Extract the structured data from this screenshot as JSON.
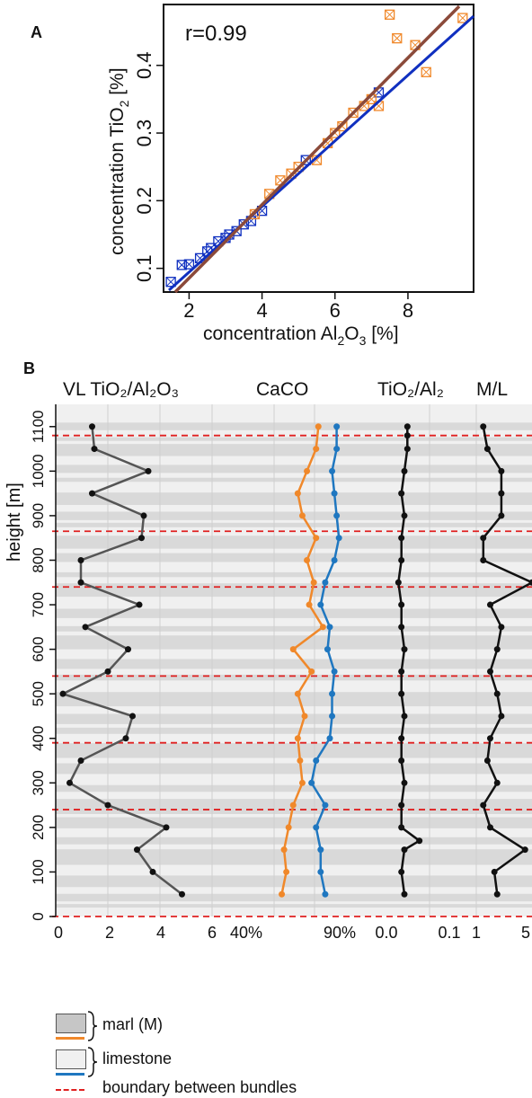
{
  "panelA": {
    "letter": "A",
    "annotation": "r=0.99",
    "xlabel_base": "concentration Al",
    "xlabel_sub1": "2",
    "xlabel_mid": "O",
    "xlabel_sub2": "3",
    "xlabel_end": " [%]",
    "ylabel_base": "concentration TiO",
    "ylabel_sub": "2",
    "ylabel_end": " [%]",
    "xticks": [
      "2",
      "4",
      "6",
      "8"
    ],
    "yticks": [
      "0.1",
      "0.2",
      "0.3",
      "0.4"
    ]
  },
  "panelB": {
    "letter": "B",
    "ylabel": "height [m]",
    "yticks": [
      "0",
      "100",
      "200",
      "300",
      "400",
      "500",
      "600",
      "700",
      "800",
      "900",
      "1000",
      "1100"
    ],
    "col1_title": "VL TiO₂/Al₂O₃",
    "col2_title": "CaCO",
    "col3_title": "TiO₂/Al₂",
    "col4_title": "M/L",
    "col1_ticks": [
      "0",
      "2",
      "4",
      "6"
    ],
    "col2_ticks": [
      "40%",
      "90%"
    ],
    "col3_ticks": [
      "0.0",
      "0.1"
    ],
    "col4_ticks": [
      "1",
      "5"
    ]
  },
  "legend": {
    "marl": "marl (M)",
    "limestone": "limestone",
    "boundary": "boundary between bundles"
  },
  "colors": {
    "marl_line": "#f0882a",
    "limestone_line": "#1f77c0",
    "boundary": "#e02020",
    "fit_blue": "#1030c0",
    "fit_brown": "#8b4a3a",
    "marl_band": "#d9d9d9",
    "lime_band": "#f0f0f0"
  },
  "chart_data": [
    {
      "type": "scatter",
      "title": "",
      "xlabel": "concentration Al2O3 [%]",
      "ylabel": "concentration TiO2 [%]",
      "xlim": [
        1.3,
        9.8
      ],
      "ylim": [
        0.065,
        0.49
      ],
      "series": [
        {
          "marker": "limestone",
          "x": [
            1.5,
            1.8,
            2.0,
            2.3,
            2.5,
            2.6,
            2.8,
            3.0,
            3.1,
            3.3,
            3.5,
            3.7,
            4.0,
            5.2,
            7.2
          ],
          "y": [
            0.08,
            0.105,
            0.106,
            0.115,
            0.125,
            0.13,
            0.14,
            0.145,
            0.15,
            0.155,
            0.165,
            0.17,
            0.185,
            0.26,
            0.36
          ]
        },
        {
          "marker": "marl",
          "x": [
            3.8,
            4.2,
            4.5,
            4.8,
            5.0,
            5.5,
            5.8,
            6.0,
            6.2,
            6.5,
            6.8,
            7.0,
            7.2,
            7.5,
            7.7,
            8.2,
            8.5,
            9.5
          ],
          "y": [
            0.18,
            0.21,
            0.23,
            0.24,
            0.25,
            0.26,
            0.285,
            0.3,
            0.31,
            0.33,
            0.34,
            0.35,
            0.34,
            0.475,
            0.44,
            0.43,
            0.39,
            0.47
          ]
        }
      ]
    },
    {
      "type": "line",
      "title": "",
      "ylabel": "height [m]",
      "ylim": [
        0,
        1150
      ],
      "panels": [
        {
          "name": "VL TiO2/Al2O3",
          "xlim": [
            0,
            7
          ],
          "height": [
            50,
            100,
            150,
            200,
            250,
            300,
            350,
            400,
            450,
            500,
            550,
            600,
            650,
            700,
            750,
            800,
            850,
            900,
            950,
            1000,
            1050,
            1100
          ],
          "values": [
            5.5,
            4.2,
            3.5,
            4.8,
            2.2,
            0.5,
            1.0,
            3.0,
            3.3,
            0.2,
            2.2,
            3.1,
            1.2,
            3.6,
            1.0,
            1.0,
            3.7,
            3.8,
            1.5,
            4.0,
            1.6,
            1.5
          ]
        },
        {
          "name": "CaCO marl",
          "xlim": [
            40,
            95
          ],
          "height": [
            50,
            100,
            150,
            200,
            250,
            300,
            350,
            400,
            450,
            500,
            550,
            600,
            650,
            700,
            750,
            800,
            850,
            900,
            950,
            1000,
            1050,
            1100
          ],
          "values": [
            63,
            65,
            64,
            66,
            68,
            72,
            71,
            70,
            73,
            70,
            76,
            68,
            81,
            75,
            77,
            74,
            78,
            72,
            70,
            74,
            78,
            79
          ]
        },
        {
          "name": "CaCO limestone",
          "xlim": [
            40,
            95
          ],
          "height": [
            50,
            100,
            150,
            200,
            250,
            300,
            350,
            400,
            450,
            500,
            550,
            600,
            650,
            700,
            750,
            800,
            850,
            900,
            950,
            1000,
            1050,
            1100
          ],
          "values": [
            82,
            80,
            80,
            78,
            82,
            76,
            78,
            84,
            85,
            85,
            86,
            83,
            84,
            80,
            82,
            86,
            88,
            87,
            86,
            85,
            87,
            87
          ]
        },
        {
          "name": "TiO2/Al2",
          "xlim": [
            0,
            0.12
          ],
          "height": [
            50,
            100,
            150,
            170,
            200,
            250,
            300,
            350,
            400,
            450,
            500,
            550,
            600,
            650,
            700,
            750,
            800,
            850,
            900,
            950,
            1000,
            1050,
            1080,
            1100
          ],
          "values": [
            0.045,
            0.04,
            0.045,
            0.07,
            0.04,
            0.04,
            0.045,
            0.04,
            0.04,
            0.045,
            0.04,
            0.04,
            0.045,
            0.04,
            0.04,
            0.035,
            0.04,
            0.04,
            0.045,
            0.04,
            0.045,
            0.05,
            0.05,
            0.05
          ]
        },
        {
          "name": "M/L",
          "xlim": [
            1,
            5
          ],
          "height": [
            50,
            100,
            150,
            200,
            250,
            300,
            350,
            400,
            450,
            500,
            550,
            600,
            650,
            700,
            750,
            800,
            850,
            900,
            950,
            1000,
            1050,
            1100
          ],
          "values": [
            2.5,
            2.3,
            4.5,
            2.0,
            1.5,
            2.5,
            1.8,
            2.0,
            2.8,
            2.5,
            2.0,
            2.5,
            2.8,
            2.0,
            5.0,
            1.5,
            1.5,
            2.8,
            2.8,
            2.8,
            1.8,
            1.5
          ]
        }
      ],
      "boundaries": [
        0,
        240,
        390,
        540,
        740,
        865,
        1080
      ]
    }
  ]
}
